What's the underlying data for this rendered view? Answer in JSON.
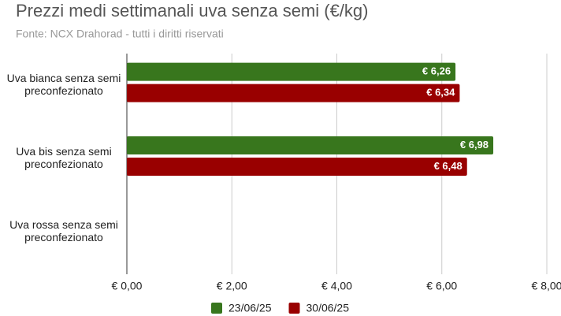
{
  "chart_data": {
    "type": "hbar",
    "title": "Prezzi medi settimanali uva senza semi (€/kg)",
    "subtitle": "Fonte: NCX Drahorad - tutti i diritti riservati",
    "categories": [
      "Uva bianca senza semi preconfezionato",
      "Uva bis senza semi preconfezionato",
      "Uva rossa senza semi preconfezionato"
    ],
    "series": [
      {
        "name": "23/06/25",
        "color": "#38761d",
        "values": [
          6.26,
          6.98,
          null
        ],
        "value_labels": [
          "€ 6,26",
          "€ 6,98",
          null
        ]
      },
      {
        "name": "30/06/25",
        "color": "#990000",
        "values": [
          6.34,
          6.48,
          null
        ],
        "value_labels": [
          "€ 6,34",
          "€ 6,48",
          null
        ]
      }
    ],
    "xlim": [
      0,
      8
    ],
    "xticks": [
      {
        "value": 0,
        "label": "€ 0,00"
      },
      {
        "value": 2,
        "label": "€ 2,00"
      },
      {
        "value": 4,
        "label": "€ 4,00"
      },
      {
        "value": 6,
        "label": "€ 6,00"
      },
      {
        "value": 8,
        "label": "€ 8,00"
      }
    ],
    "grid": true
  }
}
